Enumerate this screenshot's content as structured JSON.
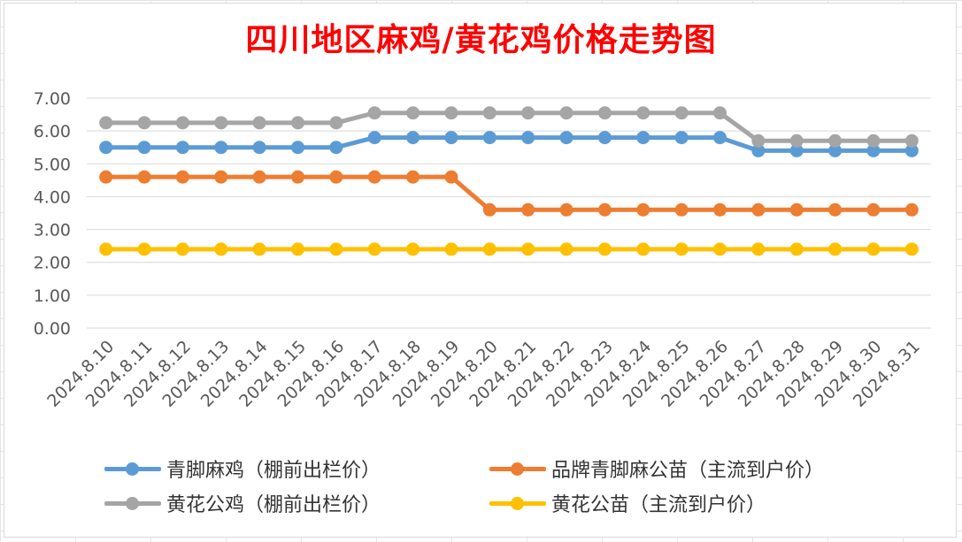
{
  "chart_data": {
    "type": "line",
    "title": "四川地区麻鸡/黄花鸡价格走势图",
    "xlabel": "",
    "ylabel": "",
    "ylim": [
      0,
      7
    ],
    "y_ticks": [
      "0.00",
      "1.00",
      "2.00",
      "3.00",
      "4.00",
      "5.00",
      "6.00",
      "7.00"
    ],
    "grid": true,
    "legend_position": "bottom",
    "categories": [
      "2024.8.10",
      "2024.8.11",
      "2024.8.12",
      "2024.8.13",
      "2024.8.14",
      "2024.8.15",
      "2024.8.16",
      "2024.8.17",
      "2024.8.18",
      "2024.8.19",
      "2024.8.20",
      "2024.8.21",
      "2024.8.22",
      "2024.8.23",
      "2024.8.24",
      "2024.8.25",
      "2024.8.26",
      "2024.8.27",
      "2024.8.28",
      "2024.8.29",
      "2024.8.30",
      "2024.8.31"
    ],
    "series": [
      {
        "name": "青脚麻鸡（棚前出栏价）",
        "color": "#5b9bd5",
        "values": [
          5.5,
          5.5,
          5.5,
          5.5,
          5.5,
          5.5,
          5.5,
          5.8,
          5.8,
          5.8,
          5.8,
          5.8,
          5.8,
          5.8,
          5.8,
          5.8,
          5.8,
          5.4,
          5.4,
          5.4,
          5.4,
          5.4
        ]
      },
      {
        "name": "品牌青脚麻公苗（主流到户价）",
        "color": "#ed7d31",
        "values": [
          4.6,
          4.6,
          4.6,
          4.6,
          4.6,
          4.6,
          4.6,
          4.6,
          4.6,
          4.6,
          3.6,
          3.6,
          3.6,
          3.6,
          3.6,
          3.6,
          3.6,
          3.6,
          3.6,
          3.6,
          3.6,
          3.6
        ]
      },
      {
        "name": "黄花公鸡（棚前出栏价）",
        "color": "#a5a5a5",
        "values": [
          6.25,
          6.25,
          6.25,
          6.25,
          6.25,
          6.25,
          6.25,
          6.55,
          6.55,
          6.55,
          6.55,
          6.55,
          6.55,
          6.55,
          6.55,
          6.55,
          6.55,
          5.7,
          5.7,
          5.7,
          5.7,
          5.7
        ]
      },
      {
        "name": "黄花公苗（主流到户价）",
        "color": "#ffc000",
        "values": [
          2.4,
          2.4,
          2.4,
          2.4,
          2.4,
          2.4,
          2.4,
          2.4,
          2.4,
          2.4,
          2.4,
          2.4,
          2.4,
          2.4,
          2.4,
          2.4,
          2.4,
          2.4,
          2.4,
          2.4,
          2.4,
          2.4
        ]
      }
    ]
  }
}
